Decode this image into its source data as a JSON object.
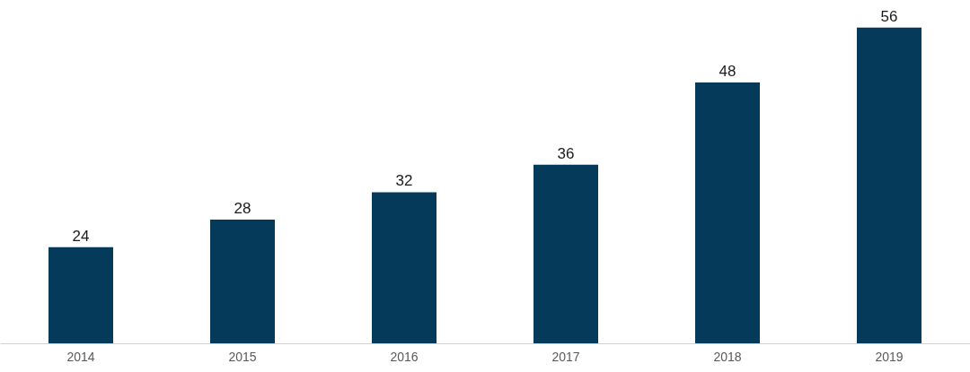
{
  "chart_data": {
    "type": "bar",
    "categories": [
      "2014",
      "2015",
      "2016",
      "2017",
      "2018",
      "2019"
    ],
    "values": [
      24,
      28,
      32,
      36,
      48,
      56
    ],
    "color": "#053a5a",
    "ylim": [
      10,
      60
    ],
    "data_labels": true
  }
}
